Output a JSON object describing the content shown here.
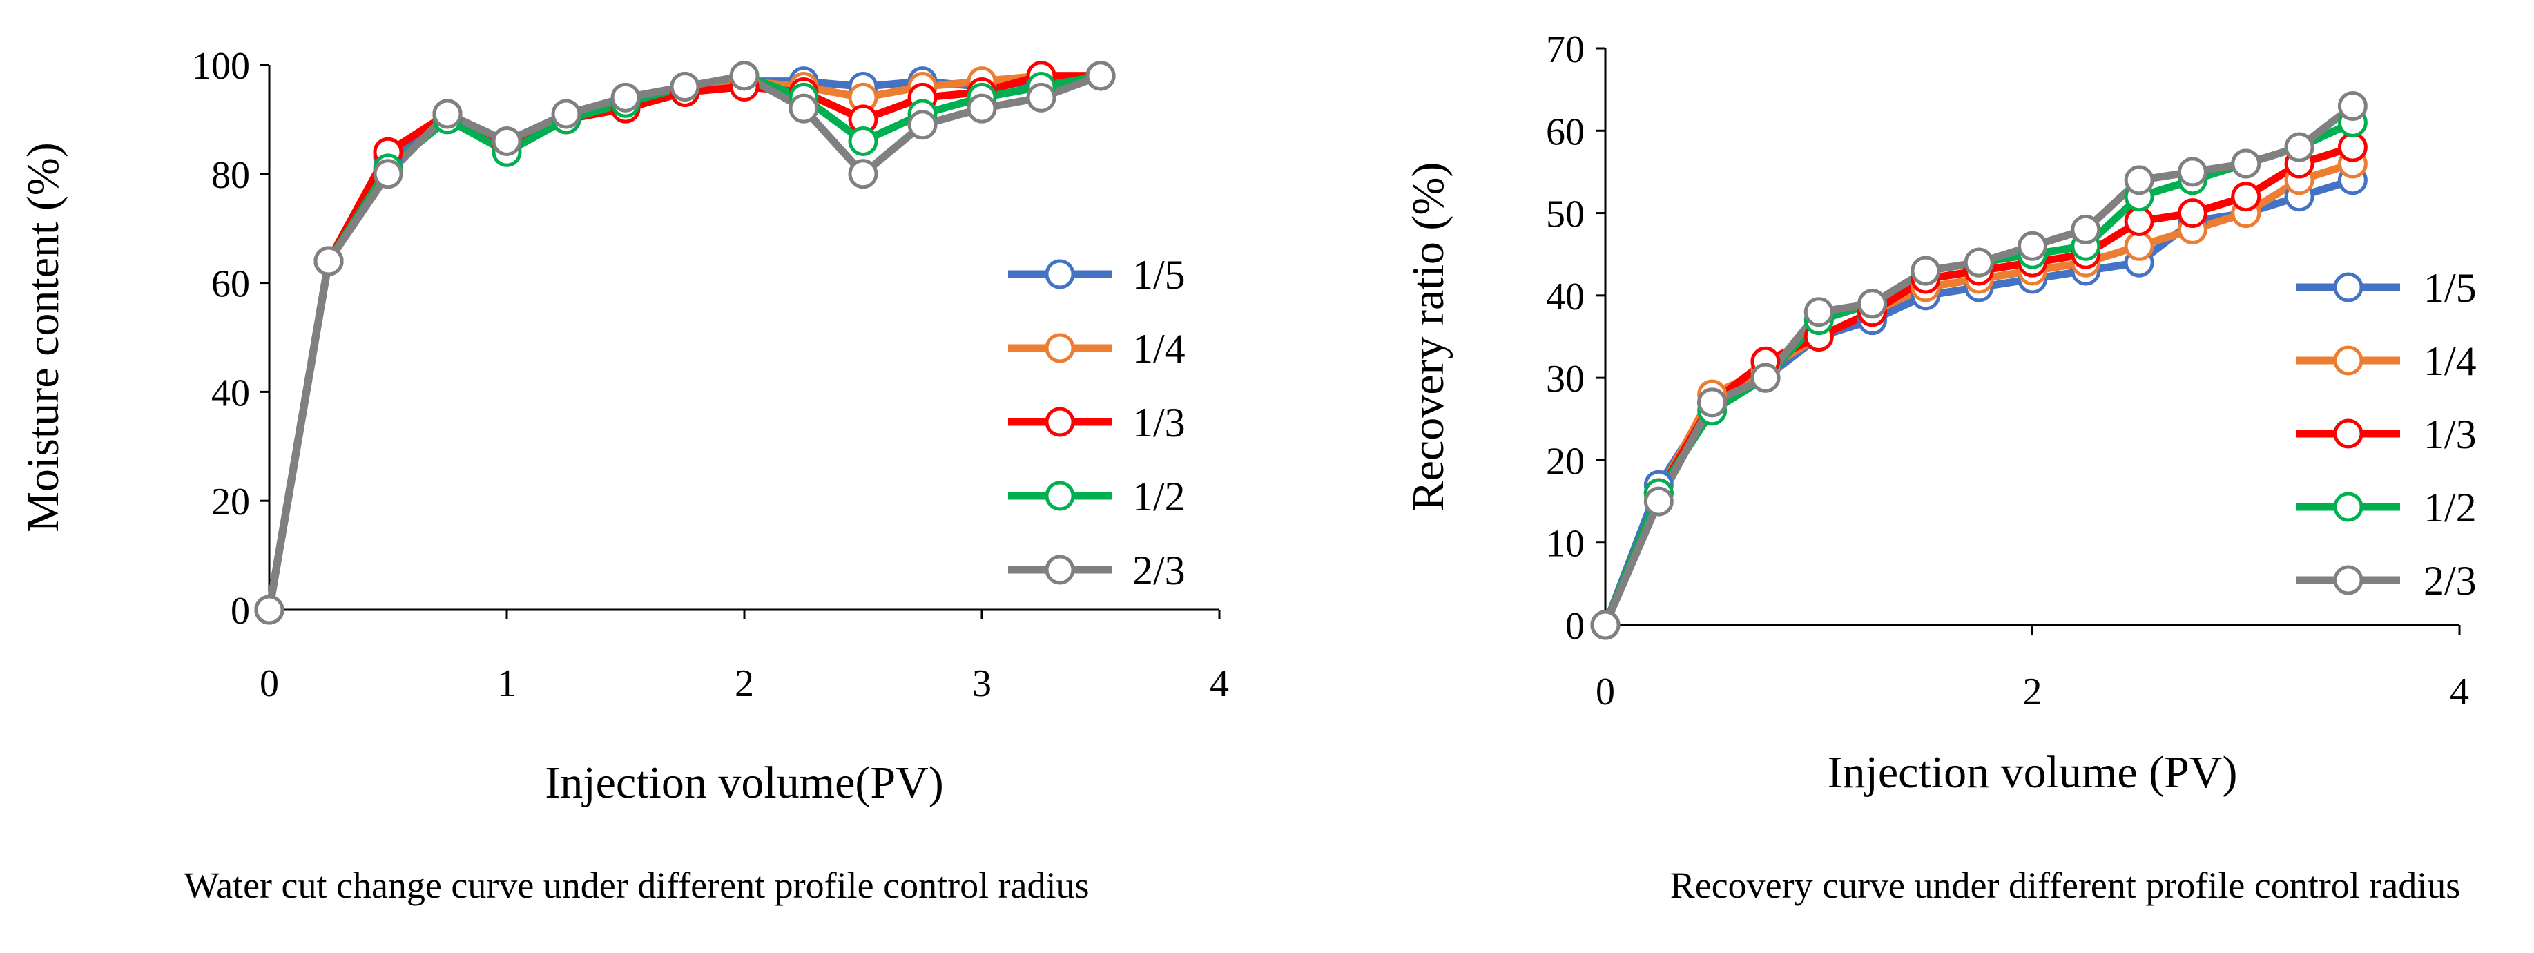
{
  "chart_data": [
    {
      "type": "line",
      "title": "Water cut change curve under different profile control radius",
      "xlabel": "Injection volume(PV)",
      "ylabel": "Moisture content (%)",
      "xlim": [
        0,
        4
      ],
      "ylim": [
        0,
        100
      ],
      "xticks": [
        0,
        1,
        2,
        3,
        4
      ],
      "yticks": [
        0,
        20,
        40,
        60,
        80,
        100
      ],
      "grid": false,
      "legend_position": "right",
      "x": [
        0,
        0.25,
        0.5,
        0.75,
        1.0,
        1.25,
        1.5,
        1.75,
        2.0,
        2.25,
        2.5,
        2.75,
        3.0,
        3.25,
        3.5
      ],
      "series": [
        {
          "name": "1/5",
          "color": "#4472C4",
          "values": [
            0,
            64,
            83,
            91,
            85,
            90,
            93,
            95,
            97,
            97,
            96,
            97,
            96,
            97,
            98
          ]
        },
        {
          "name": "1/4",
          "color": "#ED7D31",
          "values": [
            0,
            64,
            84,
            91,
            85,
            90,
            92,
            95,
            97,
            96,
            94,
            96,
            97,
            98,
            98
          ]
        },
        {
          "name": "1/3",
          "color": "#FF0000",
          "values": [
            0,
            64,
            84,
            91,
            85,
            90,
            92,
            95,
            96,
            95,
            90,
            94,
            95,
            98,
            98
          ]
        },
        {
          "name": "1/2",
          "color": "#00B050",
          "values": [
            0,
            64,
            81,
            90,
            84,
            90,
            93,
            96,
            98,
            94,
            86,
            91,
            94,
            96,
            98
          ]
        },
        {
          "name": "2/3",
          "color": "#808080",
          "values": [
            0,
            64,
            80,
            91,
            86,
            91,
            94,
            96,
            98,
            92,
            80,
            89,
            92,
            94,
            98
          ]
        }
      ]
    },
    {
      "type": "line",
      "title": "Recovery curve under different profile control radius",
      "xlabel": "Injection volume (PV)",
      "ylabel": "Recovery ratio (%)",
      "xlim": [
        0,
        4
      ],
      "ylim": [
        0,
        70
      ],
      "xticks": [
        0,
        2,
        4
      ],
      "yticks": [
        0,
        10,
        20,
        30,
        40,
        50,
        60,
        70
      ],
      "grid": false,
      "legend_position": "right",
      "x": [
        0,
        0.25,
        0.5,
        0.75,
        1.0,
        1.25,
        1.5,
        1.75,
        2.0,
        2.25,
        2.5,
        2.75,
        3.0,
        3.25,
        3.5
      ],
      "series": [
        {
          "name": "1/5",
          "color": "#4472C4",
          "values": [
            0,
            17,
            27,
            30,
            35,
            37,
            40,
            41,
            42,
            43,
            44,
            49,
            50,
            52,
            54
          ]
        },
        {
          "name": "1/4",
          "color": "#ED7D31",
          "values": [
            0,
            16,
            28,
            31,
            35,
            38,
            41,
            42,
            43,
            44,
            46,
            48,
            50,
            54,
            56
          ]
        },
        {
          "name": "1/3",
          "color": "#FF0000",
          "values": [
            0,
            16,
            27,
            32,
            35,
            38,
            42,
            43,
            44,
            45,
            49,
            50,
            52,
            56,
            58
          ]
        },
        {
          "name": "1/2",
          "color": "#00B050",
          "values": [
            0,
            16,
            26,
            30,
            37,
            39,
            43,
            44,
            45,
            46,
            52,
            54,
            56,
            58,
            61
          ]
        },
        {
          "name": "2/3",
          "color": "#808080",
          "values": [
            0,
            15,
            27,
            30,
            38,
            39,
            43,
            44,
            46,
            48,
            54,
            55,
            56,
            58,
            63
          ]
        }
      ]
    }
  ]
}
